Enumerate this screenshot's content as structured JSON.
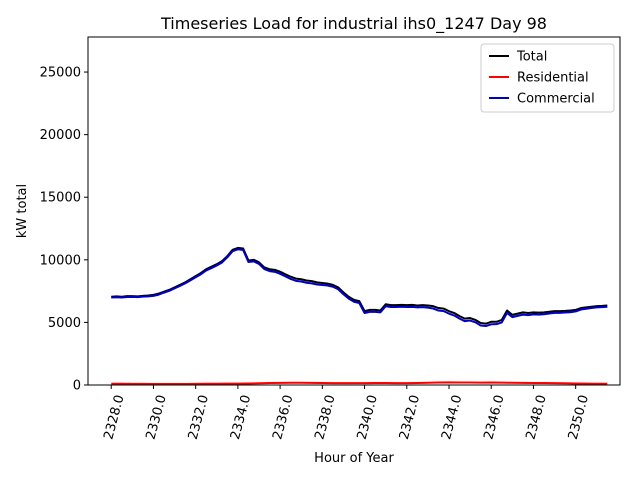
{
  "chart_data": {
    "type": "line",
    "title": "Timeseries Load for industrial ihs0_1247  Day 98",
    "xlabel": "Hour of Year",
    "ylabel": "kW total",
    "xlim": [
      2326.9,
      2352.1
    ],
    "ylim": [
      0,
      27800
    ],
    "xticks": [
      2328,
      2330,
      2332,
      2334,
      2336,
      2338,
      2340,
      2342,
      2344,
      2346,
      2348,
      2350
    ],
    "xtick_labels": [
      "2328.0",
      "2330.0",
      "2332.0",
      "2334.0",
      "2336.0",
      "2338.0",
      "2340.0",
      "2342.0",
      "2344.0",
      "2346.0",
      "2348.0",
      "2350.0"
    ],
    "yticks": [
      0,
      5000,
      10000,
      15000,
      20000,
      25000
    ],
    "ytick_labels": [
      "0",
      "5000",
      "10000",
      "15000",
      "20000",
      "25000"
    ],
    "grid": false,
    "legend_position": "top-right",
    "series": [
      {
        "name": "Total",
        "color": "#000000",
        "x": [
          2328,
          2328.25,
          2328.5,
          2328.75,
          2329,
          2329.25,
          2329.5,
          2329.75,
          2330,
          2330.25,
          2330.5,
          2330.75,
          2331,
          2331.25,
          2331.5,
          2331.75,
          2332,
          2332.25,
          2332.5,
          2332.75,
          2333,
          2333.25,
          2333.5,
          2333.75,
          2334,
          2334.25,
          2334.5,
          2334.75,
          2335,
          2335.25,
          2335.5,
          2335.75,
          2336,
          2336.25,
          2336.5,
          2336.75,
          2337,
          2337.25,
          2337.5,
          2337.75,
          2338,
          2338.25,
          2338.5,
          2338.75,
          2339,
          2339.25,
          2339.5,
          2339.75,
          2340,
          2340.25,
          2340.5,
          2340.75,
          2341,
          2341.25,
          2341.5,
          2341.75,
          2342,
          2342.25,
          2342.5,
          2342.75,
          2343,
          2343.25,
          2343.5,
          2343.75,
          2344,
          2344.25,
          2344.5,
          2344.75,
          2345,
          2345.25,
          2345.5,
          2345.75,
          2346,
          2346.25,
          2346.5,
          2346.75,
          2347,
          2347.25,
          2347.5,
          2347.75,
          2348,
          2348.25,
          2348.5,
          2348.75,
          2349,
          2349.25,
          2349.5,
          2349.75,
          2350,
          2350.25,
          2350.5,
          2350.75,
          2351,
          2351.25,
          2351.5
        ],
        "values": [
          7050,
          7080,
          7050,
          7100,
          7100,
          7080,
          7120,
          7150,
          7200,
          7300,
          7450,
          7600,
          7800,
          8000,
          8200,
          8450,
          8700,
          8950,
          9250,
          9450,
          9650,
          9900,
          10300,
          10800,
          10950,
          10900,
          9950,
          10000,
          9800,
          9400,
          9250,
          9200,
          9050,
          8850,
          8650,
          8500,
          8450,
          8350,
          8300,
          8200,
          8150,
          8100,
          8000,
          7800,
          7400,
          7050,
          6800,
          6700,
          5900,
          6000,
          6000,
          5950,
          6450,
          6380,
          6380,
          6400,
          6380,
          6400,
          6350,
          6380,
          6350,
          6300,
          6150,
          6100,
          5900,
          5750,
          5500,
          5300,
          5350,
          5200,
          4950,
          4900,
          5050,
          5050,
          5200,
          5950,
          5600,
          5700,
          5800,
          5750,
          5800,
          5780,
          5800,
          5850,
          5900,
          5900,
          5920,
          5950,
          6000,
          6150,
          6200,
          6250,
          6300,
          6320,
          6350
        ]
      },
      {
        "name": "Residential",
        "color": "#ff0000",
        "x": [
          2328,
          2328.5,
          2329,
          2329.5,
          2330,
          2330.5,
          2331,
          2331.5,
          2332,
          2332.5,
          2333,
          2333.5,
          2334,
          2334.5,
          2335,
          2335.5,
          2336,
          2336.5,
          2337,
          2337.5,
          2338,
          2338.5,
          2339,
          2339.5,
          2340,
          2340.5,
          2341,
          2341.5,
          2342,
          2342.5,
          2343,
          2343.5,
          2344,
          2344.5,
          2345,
          2345.5,
          2346,
          2346.5,
          2347,
          2347.5,
          2348,
          2348.5,
          2349,
          2349.5,
          2350,
          2350.5,
          2351,
          2351.5
        ],
        "values": [
          100,
          100,
          90,
          90,
          80,
          80,
          80,
          80,
          90,
          100,
          100,
          110,
          110,
          120,
          140,
          160,
          170,
          180,
          180,
          170,
          160,
          150,
          150,
          150,
          150,
          160,
          160,
          150,
          150,
          160,
          180,
          200,
          210,
          200,
          200,
          190,
          200,
          190,
          180,
          170,
          160,
          160,
          150,
          140,
          120,
          110,
          100,
          100
        ]
      },
      {
        "name": "Commercial",
        "color": "#0000cc",
        "x": [
          2328,
          2328.25,
          2328.5,
          2328.75,
          2329,
          2329.25,
          2329.5,
          2329.75,
          2330,
          2330.25,
          2330.5,
          2330.75,
          2331,
          2331.25,
          2331.5,
          2331.75,
          2332,
          2332.25,
          2332.5,
          2332.75,
          2333,
          2333.25,
          2333.5,
          2333.75,
          2334,
          2334.25,
          2334.5,
          2334.75,
          2335,
          2335.25,
          2335.5,
          2335.75,
          2336,
          2336.25,
          2336.5,
          2336.75,
          2337,
          2337.25,
          2337.5,
          2337.75,
          2338,
          2338.25,
          2338.5,
          2338.75,
          2339,
          2339.25,
          2339.5,
          2339.75,
          2340,
          2340.25,
          2340.5,
          2340.75,
          2341,
          2341.25,
          2341.5,
          2341.75,
          2342,
          2342.25,
          2342.5,
          2342.75,
          2343,
          2343.25,
          2343.5,
          2343.75,
          2344,
          2344.25,
          2344.5,
          2344.75,
          2345,
          2345.25,
          2345.5,
          2345.75,
          2346,
          2346.25,
          2346.5,
          2346.75,
          2347,
          2347.25,
          2347.5,
          2347.75,
          2348,
          2348.25,
          2348.5,
          2348.75,
          2349,
          2349.25,
          2349.5,
          2349.75,
          2350,
          2350.25,
          2350.5,
          2350.75,
          2351,
          2351.25,
          2351.5
        ],
        "values": [
          6990,
          7010,
          6990,
          7030,
          7040,
          7020,
          7060,
          7080,
          7120,
          7220,
          7380,
          7520,
          7720,
          7910,
          8120,
          8360,
          8610,
          8850,
          9150,
          9340,
          9550,
          9790,
          10200,
          10690,
          10840,
          10780,
          9830,
          9880,
          9670,
          9260,
          9100,
          9040,
          8880,
          8680,
          8470,
          8320,
          8270,
          8170,
          8120,
          8030,
          7990,
          7950,
          7850,
          7650,
          7250,
          6900,
          6650,
          6550,
          5750,
          5840,
          5840,
          5800,
          6290,
          6230,
          6230,
          6250,
          6230,
          6240,
          6200,
          6220,
          6180,
          6110,
          5950,
          5900,
          5700,
          5550,
          5300,
          5100,
          5150,
          5010,
          4750,
          4710,
          4850,
          4860,
          5000,
          5760,
          5420,
          5520,
          5620,
          5580,
          5640,
          5620,
          5650,
          5710,
          5760,
          5760,
          5790,
          5810,
          5880,
          6030,
          6090,
          6150,
          6200,
          6220,
          6250
        ]
      }
    ]
  }
}
